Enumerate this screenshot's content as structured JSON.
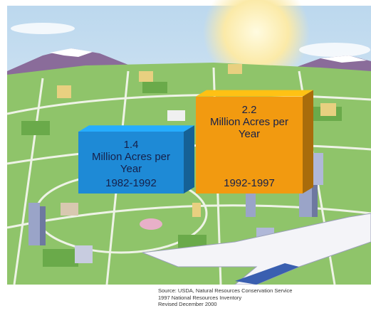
{
  "chart_data": {
    "type": "bar",
    "categories": [
      "1982-1992",
      "1992-1997"
    ],
    "values": [
      1.4,
      2.2
    ],
    "unit": "Million Acres per Year",
    "colors": [
      "#1e8ad6",
      "#f29a10"
    ]
  },
  "source": [
    "Source: USDA, Natural Resources Conservation Service",
    "1997 National Resources Inventory",
    "Revised December 2000"
  ]
}
